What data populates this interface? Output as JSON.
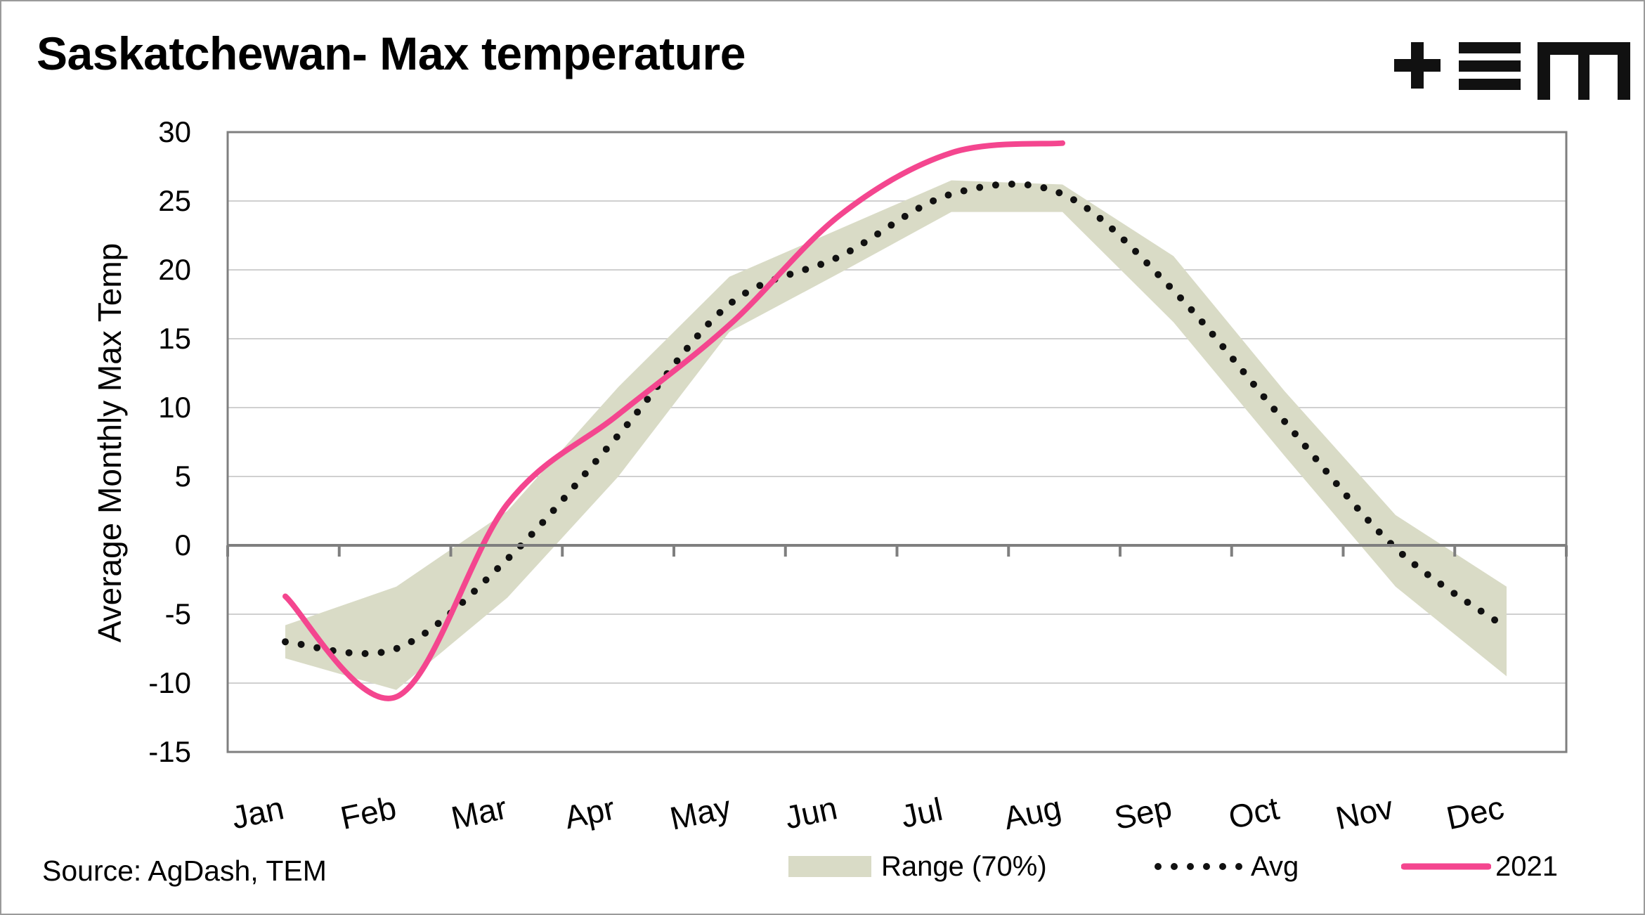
{
  "title": "Saskatchewan- Max temperature",
  "source": "Source: AgDash, TEM",
  "logo": {
    "name": "tem-logo",
    "color": "#111111"
  },
  "legend": {
    "range_label": "Range (70%)",
    "avg_label": "Avg",
    "y2021_label": "2021"
  },
  "colors": {
    "range_fill": "#d9dbc6",
    "avg": "#111111",
    "y2021": "#f4468f",
    "grid": "#d0d0d0",
    "axis": "#7f7f7f"
  },
  "chart_data": {
    "type": "line",
    "title": "Saskatchewan- Max temperature",
    "xlabel": "",
    "ylabel": "Average Monthly Max Temp",
    "categories": [
      "Jan",
      "Feb",
      "Mar",
      "Apr",
      "May",
      "Jun",
      "Jul",
      "Aug",
      "Sep",
      "Oct",
      "Nov",
      "Dec"
    ],
    "ylim": [
      -15,
      30
    ],
    "yticks": [
      30,
      25,
      20,
      15,
      10,
      5,
      0,
      -5,
      -10,
      -15
    ],
    "grid": true,
    "range_low": [
      -8.2,
      -10.5,
      -3.8,
      5.0,
      15.5,
      19.8,
      24.2,
      24.2,
      16.2,
      6.5,
      -3.0,
      -9.5
    ],
    "range_high": [
      -5.8,
      -3.0,
      2.5,
      11.5,
      19.5,
      23.0,
      26.5,
      26.2,
      21.0,
      11.2,
      2.2,
      -3.0
    ],
    "series": [
      {
        "name": "Avg",
        "style": "dotted",
        "values": [
          -7.0,
          -7.5,
          -1.0,
          8.0,
          17.5,
          21.0,
          25.5,
          25.5,
          18.5,
          9.0,
          -0.2,
          -6.0
        ]
      },
      {
        "name": "2021",
        "style": "solid",
        "values": [
          -3.7,
          -11.0,
          3.0,
          9.5,
          16.0,
          24.0,
          28.5,
          29.2,
          null,
          null,
          null,
          null
        ]
      }
    ],
    "legend_position": "bottom"
  }
}
